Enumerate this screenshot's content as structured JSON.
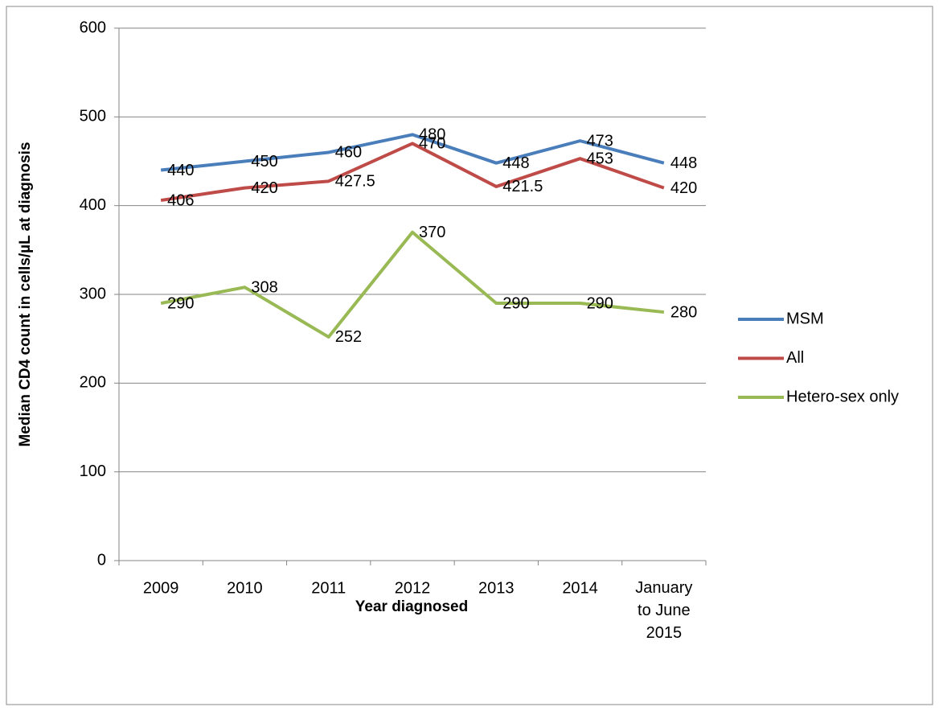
{
  "chart_data": {
    "type": "line",
    "x_label": "Year diagnosed",
    "y_label": "Median CD4 count in cells/µL at diagnosis",
    "categories": [
      "2009",
      "2010",
      "2011",
      "2012",
      "2013",
      "2014",
      "January to June 2015"
    ],
    "series": [
      {
        "name": "MSM",
        "color": "#4a7ebb",
        "values": [
          440,
          450,
          460,
          480,
          448,
          473,
          448
        ]
      },
      {
        "name": "All",
        "color": "#be4b48",
        "values": [
          406,
          420,
          427.5,
          470,
          421.5,
          453,
          420
        ]
      },
      {
        "name": "Hetero-sex only",
        "color": "#98b954",
        "values": [
          290,
          308,
          252,
          370,
          290,
          290,
          280
        ]
      }
    ],
    "ylim": [
      0,
      600
    ],
    "yticks": [
      0,
      100,
      200,
      300,
      400,
      500,
      600
    ],
    "grid": true,
    "legend": "right"
  }
}
